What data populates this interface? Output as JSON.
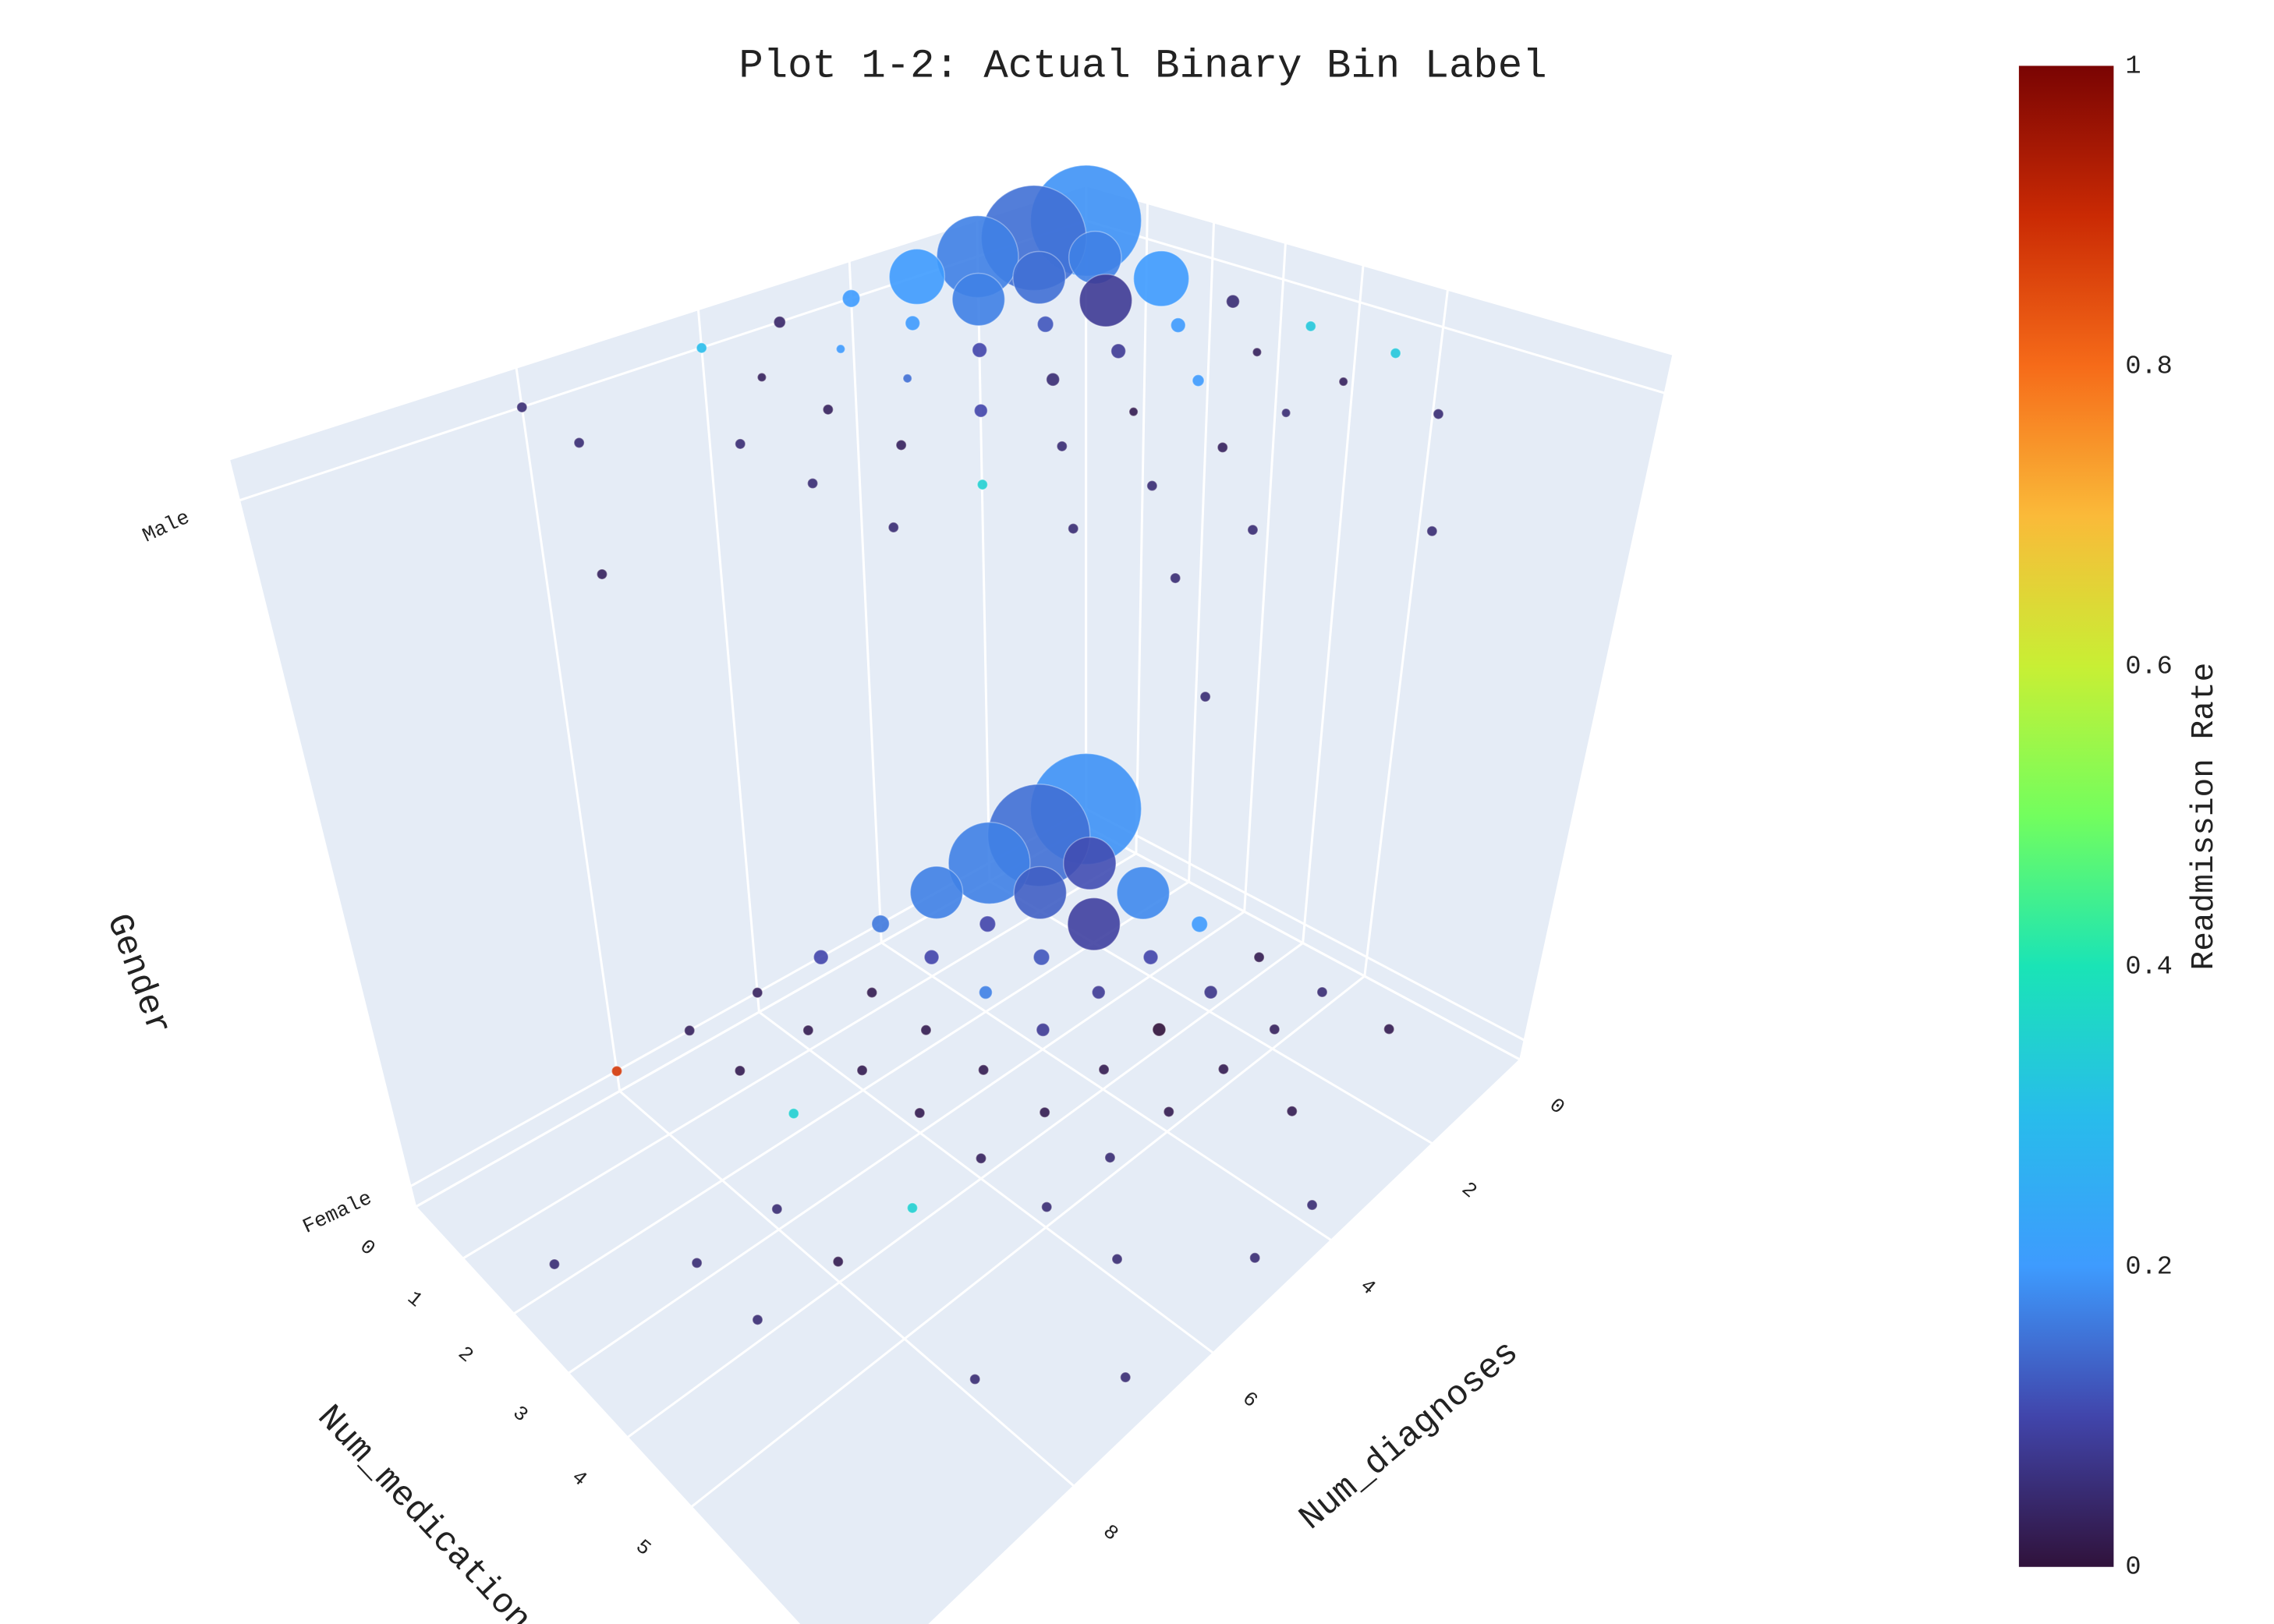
{
  "chart_data": {
    "type": "scatter3d",
    "title": "Plot 1-2: Actual Binary Bin Label",
    "x_label": "Num_medications",
    "y_label": "Num_diagnoses",
    "z_label": "Gender",
    "colorbar_title": "Readmission Rate",
    "xlim": [
      0,
      7.3
    ],
    "xticks": [
      0,
      1,
      2,
      3,
      4,
      5
    ],
    "ylim": [
      0,
      10.5
    ],
    "yticks": [
      0,
      2,
      4,
      6,
      8
    ],
    "zlim": [
      -0.03,
      1.06
    ],
    "zticks": [
      {
        "value": 0,
        "label": "Female"
      },
      {
        "value": 1,
        "label": "Male"
      }
    ],
    "clim": [
      0,
      1
    ],
    "cticks": [
      0,
      0.2,
      0.4,
      0.6,
      0.8,
      1
    ],
    "colorscale": [
      [
        0,
        "#30123b"
      ],
      [
        0.1,
        "#4145ab"
      ],
      [
        0.2,
        "#3e9bfe"
      ],
      [
        0.3,
        "#28bceb"
      ],
      [
        0.4,
        "#1ae4b6"
      ],
      [
        0.5,
        "#72fe5e"
      ],
      [
        0.6,
        "#c8ef34"
      ],
      [
        0.7,
        "#faba39"
      ],
      [
        0.8,
        "#f66b19"
      ],
      [
        0.9,
        "#ca2a04"
      ],
      [
        1,
        "#7a0403"
      ]
    ],
    "grid": true,
    "x": [
      0,
      0,
      0,
      0,
      0,
      0,
      0,
      0,
      0,
      1,
      1,
      2,
      2,
      3,
      1,
      1,
      2,
      3,
      4,
      2,
      3,
      4,
      5,
      1,
      1,
      2,
      3,
      4,
      5,
      6,
      1,
      2,
      3,
      4,
      5,
      2,
      3,
      4,
      5,
      6,
      4,
      5,
      4,
      3,
      5,
      7,
      2,
      3,
      4,
      6,
      7,
      4,
      6,
      7,
      0,
      0,
      0,
      0,
      0,
      0,
      0,
      0,
      1,
      1,
      2,
      2,
      1,
      1,
      1,
      1,
      2,
      3,
      3,
      2,
      3,
      4,
      4,
      2,
      3,
      4,
      5,
      5,
      2,
      3,
      4,
      5,
      6,
      2,
      3,
      4,
      5,
      1,
      3,
      4,
      5,
      4,
      5,
      6,
      7,
      3,
      6,
      7
    ],
    "y": [
      0,
      1,
      2,
      3,
      4,
      5,
      6,
      7,
      8,
      1,
      2,
      2,
      1,
      1,
      3,
      4,
      3,
      2,
      1,
      4,
      3,
      2,
      1,
      5,
      6,
      5,
      4,
      3,
      2,
      1,
      7,
      6,
      5,
      4,
      3,
      7,
      6,
      5,
      4,
      3,
      6,
      5,
      7,
      8,
      6,
      4,
      10,
      9,
      8,
      6,
      5,
      9,
      8,
      7,
      0,
      1,
      2,
      3,
      4,
      5,
      6,
      8,
      1,
      2,
      2,
      1,
      3,
      4,
      5,
      6,
      3,
      2,
      1,
      4,
      3,
      2,
      1,
      5,
      4,
      3,
      2,
      1,
      6,
      5,
      4,
      3,
      2,
      7,
      6,
      5,
      4,
      8,
      7,
      6,
      5,
      7,
      6,
      5,
      4,
      9,
      6,
      7
    ],
    "z": [
      0,
      0,
      0,
      0,
      0,
      0,
      0,
      0,
      0,
      0,
      0,
      0,
      0,
      0,
      0,
      0,
      0,
      0,
      0,
      0,
      0,
      0,
      0,
      0,
      0,
      0,
      0,
      0,
      0,
      0,
      0,
      0,
      0,
      0,
      0,
      0,
      0,
      0,
      0,
      0,
      0,
      0,
      0,
      0,
      0,
      0,
      0,
      0,
      0,
      0,
      0,
      0,
      0,
      0,
      1,
      1,
      1,
      1,
      1,
      1,
      1,
      1,
      1,
      1,
      1,
      1,
      1,
      1,
      1,
      1,
      1,
      1,
      1,
      1,
      1,
      1,
      1,
      1,
      1,
      1,
      1,
      1,
      1,
      1,
      1,
      1,
      1,
      1,
      1,
      1,
      1,
      1,
      1,
      1,
      1,
      1,
      1,
      1,
      1,
      1,
      1,
      1
    ],
    "sizes": [
      76,
      70,
      56,
      36,
      12,
      10,
      7,
      7,
      7,
      36,
      36,
      36,
      36,
      11,
      11,
      10,
      11,
      10,
      7,
      9,
      9,
      9,
      7,
      7,
      7,
      7,
      9,
      9,
      7,
      7,
      7,
      7,
      7,
      7,
      7,
      7,
      7,
      7,
      7,
      7,
      7,
      7,
      7,
      7,
      7,
      7,
      7,
      7,
      7,
      7,
      7,
      7,
      7,
      7,
      76,
      72,
      56,
      38,
      12,
      8,
      7,
      7,
      36,
      36,
      36,
      38,
      36,
      10,
      6,
      6,
      11,
      10,
      9,
      10,
      10,
      6,
      7,
      6,
      9,
      8,
      6,
      7,
      7,
      9,
      6,
      6,
      7,
      7,
      7,
      7,
      7,
      7,
      7,
      7,
      7,
      7,
      7,
      7,
      7,
      7,
      7,
      7
    ],
    "rates": [
      0.19,
      0.15,
      0.17,
      0.17,
      0.16,
      0.1,
      0.03,
      0.03,
      0.88,
      0.11,
      0.13,
      0.09,
      0.18,
      0.2,
      0.1,
      0.1,
      0.12,
      0.1,
      0.02,
      0.17,
      0.08,
      0.07,
      0.05,
      0.02,
      0.02,
      0.02,
      0.08,
      0,
      0.03,
      0.02,
      0.02,
      0.02,
      0.02,
      0.02,
      0.02,
      0.35,
      0.02,
      0.02,
      0.02,
      0.02,
      0.03,
      0.05,
      0.35,
      0.05,
      0.05,
      0.05,
      0.05,
      0.05,
      0.02,
      0.05,
      0.05,
      0.05,
      0.05,
      0.05,
      0.19,
      0.15,
      0.17,
      0.2,
      0.2,
      0.04,
      0.3,
      0.05,
      0.17,
      0.15,
      0.08,
      0.2,
      0.17,
      0.2,
      0.2,
      0.03,
      0.12,
      0.2,
      0.05,
      0.1,
      0.08,
      0.03,
      0.33,
      0.15,
      0.05,
      0.2,
      0.03,
      0.33,
      0.03,
      0.1,
      0.02,
      0.05,
      0.05,
      0.05,
      0.03,
      0.05,
      0.03,
      0.05,
      0.05,
      0.35,
      0.05,
      0.05,
      0.05,
      0.05,
      0.05,
      0.03,
      0.05,
      0.05
    ]
  }
}
